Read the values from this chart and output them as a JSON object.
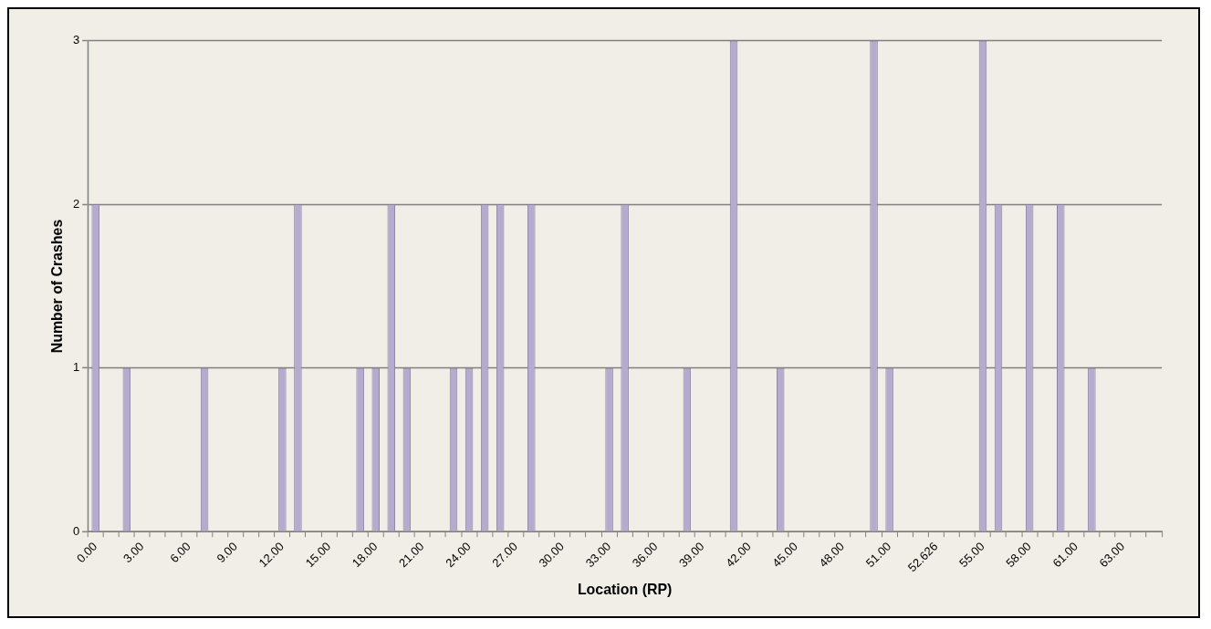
{
  "chart_data": {
    "type": "bar",
    "xlabel": "Location (RP)",
    "ylabel": "Number of Crashes",
    "categories": [
      "0.00",
      null,
      null,
      "3.00",
      null,
      null,
      "6.00",
      null,
      null,
      "9.00",
      null,
      null,
      "12.00",
      null,
      null,
      "15.00",
      null,
      null,
      "18.00",
      null,
      null,
      "21.00",
      null,
      null,
      "24.00",
      null,
      null,
      "27.00",
      null,
      null,
      "30.00",
      null,
      null,
      "33.00",
      null,
      null,
      "36.00",
      null,
      null,
      "39.00",
      null,
      null,
      "42.00",
      null,
      null,
      "45.00",
      null,
      null,
      "48.00",
      null,
      null,
      "51.00",
      null,
      null,
      "52.626",
      null,
      null,
      "55.00",
      null,
      null,
      "58.00",
      null,
      null,
      "61.00",
      null,
      null,
      "63.00",
      null,
      null
    ],
    "values": [
      2,
      0,
      1,
      0,
      0,
      0,
      0,
      1,
      0,
      0,
      0,
      0,
      1,
      2,
      0,
      0,
      0,
      1,
      1,
      2,
      1,
      0,
      0,
      1,
      1,
      2,
      2,
      0,
      2,
      0,
      0,
      0,
      0,
      1,
      2,
      0,
      0,
      0,
      1,
      0,
      0,
      3,
      0,
      0,
      1,
      0,
      0,
      0,
      0,
      0,
      3,
      1,
      0,
      0,
      0,
      0,
      0,
      3,
      2,
      0,
      2,
      0,
      2,
      0,
      1,
      0,
      0,
      0,
      0
    ],
    "color": "#b4abcf",
    "ylim": [
      0,
      3
    ],
    "yticks": [
      0,
      1,
      2,
      3
    ],
    "grid": "y",
    "legend": false
  }
}
